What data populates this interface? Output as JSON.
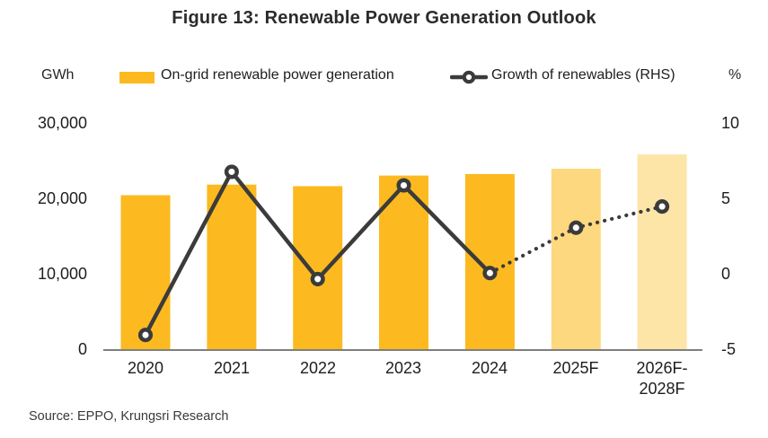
{
  "title": "Figure 13: Renewable Power Generation Outlook",
  "legend": {
    "left_axis_unit": "GWh",
    "right_axis_unit": "%",
    "bar_series_label": "On-grid renewable power generation",
    "line_series_label": "Growth of renewables (RHS)"
  },
  "source": "Source: EPPO, Krungsri Research",
  "colors": {
    "bar_actual": "#FCBA20",
    "bar_forecast_2025": "#FDD87F",
    "bar_forecast_2026_2028": "#FDE5A8",
    "line": "#3B3B3B",
    "marker_fill": "#FFFFFF",
    "axis_line": "#7F7F7F",
    "text": "#1D1D1D"
  },
  "chart_data": {
    "type": "bar+line combo",
    "title": "Figure 13: Renewable Power Generation Outlook",
    "categories": [
      "2020",
      "2021",
      "2022",
      "2023",
      "2024",
      "2025F",
      "2026F-2028F"
    ],
    "x_labels": [
      [
        "2020"
      ],
      [
        "2021"
      ],
      [
        "2022"
      ],
      [
        "2023"
      ],
      [
        "2024"
      ],
      [
        "2025F"
      ],
      [
        "2026F-",
        "2028F"
      ]
    ],
    "series": [
      {
        "name": "On-grid renewable power generation",
        "type": "bar",
        "axis": "left",
        "unit": "GWh",
        "values": [
          20500,
          21900,
          21700,
          23100,
          23300,
          24000,
          25900
        ],
        "bar_colors": [
          "#FCBA20",
          "#FCBA20",
          "#FCBA20",
          "#FCBA20",
          "#FCBA20",
          "#FDD87F",
          "#FDE5A8"
        ]
      },
      {
        "name": "Growth of renewables (RHS)",
        "type": "line",
        "axis": "right",
        "unit": "%",
        "values": [
          -4.0,
          6.8,
          -0.3,
          5.9,
          0.1,
          3.1,
          4.5
        ],
        "solid_until_index": 4,
        "style_note": "solid line with circular markers through 2024, dotted line for forecast points"
      }
    ],
    "left_axis": {
      "label": "GWh",
      "range": [
        0,
        30000
      ],
      "ticks": [
        30000,
        20000,
        10000,
        0
      ],
      "tick_labels": [
        "30,000",
        "20,000",
        "10,000",
        "0"
      ]
    },
    "right_axis": {
      "label": "%",
      "range": [
        -5,
        10
      ],
      "ticks": [
        10,
        5,
        0,
        -5
      ],
      "tick_labels": [
        "10",
        "5",
        "0",
        "-5"
      ]
    },
    "gridlines": false,
    "legend_position": "top"
  }
}
